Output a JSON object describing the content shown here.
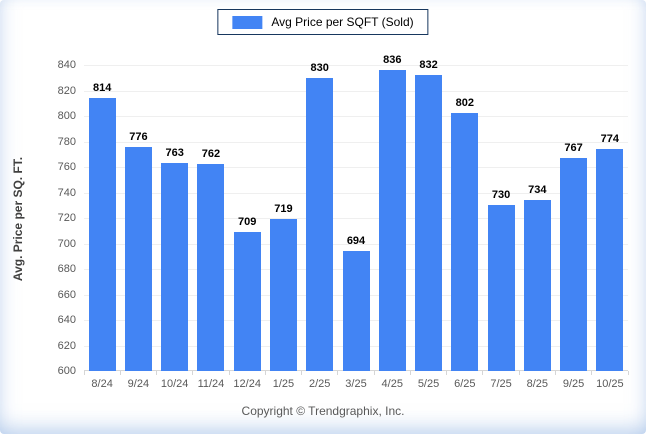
{
  "legend": {
    "label": "Avg Price per SQFT (Sold)"
  },
  "y_axis": {
    "title": "Avg. Price per SQ. FT."
  },
  "footer": {
    "copyright": "Copyright © Trendgraphix, Inc."
  },
  "colors": {
    "bar": "#4284f4",
    "legend_border": "#17375e",
    "gridline": "#efefef",
    "axis_line": "#d6d6d6",
    "tick_label": "#595959",
    "value_label": "#000000"
  },
  "chart_data": {
    "type": "bar",
    "title": "",
    "categories": [
      "8/24",
      "9/24",
      "10/24",
      "11/24",
      "12/24",
      "1/25",
      "2/25",
      "3/25",
      "4/25",
      "5/25",
      "6/25",
      "7/25",
      "8/25",
      "9/25",
      "10/25"
    ],
    "values": [
      814,
      776,
      763,
      762,
      709,
      719,
      830,
      694,
      836,
      832,
      802,
      730,
      734,
      767,
      774
    ],
    "xlabel": "",
    "ylabel": "Avg. Price per SQ. FT.",
    "ylim": [
      600,
      840
    ],
    "ytick_step": 20,
    "grid": true,
    "legend_entries": [
      "Avg Price per SQFT (Sold)"
    ],
    "legend_position": "top-center",
    "value_labels": true
  }
}
